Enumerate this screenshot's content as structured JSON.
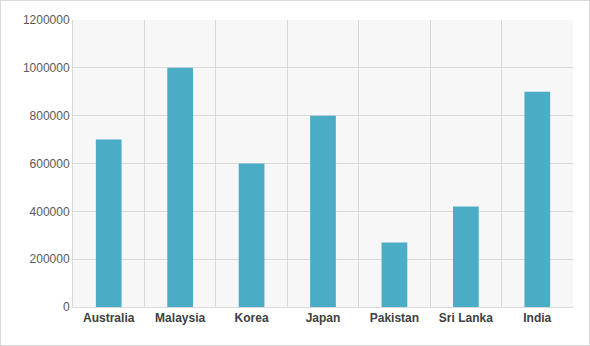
{
  "chart_data": {
    "type": "bar",
    "categories": [
      "Australia",
      "Malaysia",
      "Korea",
      "Japan",
      "Pakistan",
      "Sri Lanka",
      "India"
    ],
    "values": [
      700000,
      1000000,
      600000,
      800000,
      270000,
      420000,
      900000
    ],
    "color": "#4bacc6",
    "ylim": [
      0,
      1200000
    ],
    "yticks": [
      0,
      200000,
      400000,
      600000,
      800000,
      1000000,
      1200000
    ],
    "grid": true
  }
}
